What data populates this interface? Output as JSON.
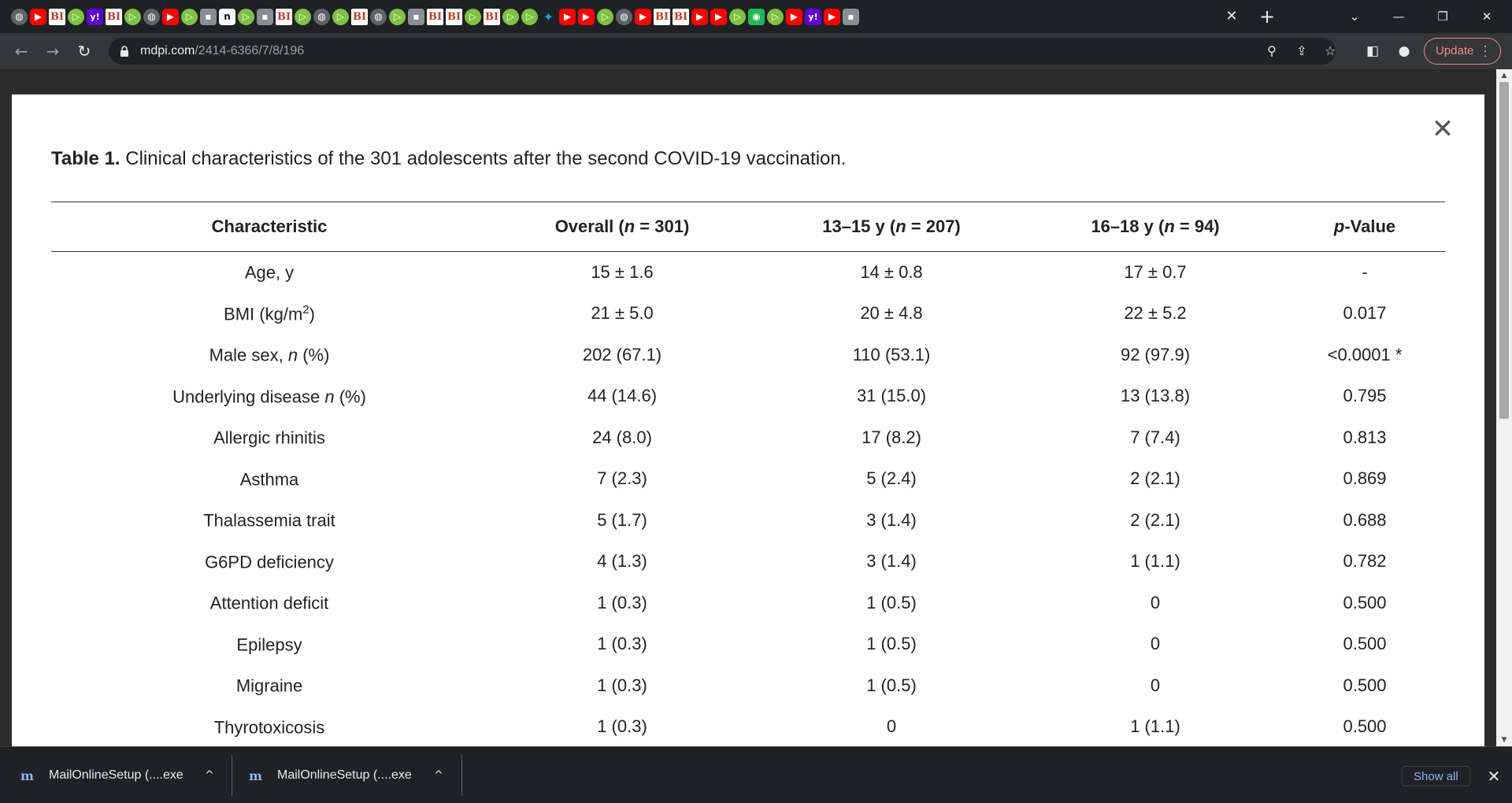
{
  "browser": {
    "tab_icons": [
      "globe-icon",
      "yt",
      "bi",
      "play",
      "y",
      "bi",
      "play",
      "globe-icon",
      "yt",
      "play",
      "gray",
      "blk",
      "play",
      "gray",
      "bi",
      "play",
      "globe-icon",
      "play",
      "bi",
      "globe-icon",
      "play",
      "gray",
      "bi",
      "bi",
      "play",
      "bi",
      "play",
      "play",
      "tw",
      "yt",
      "yt",
      "play",
      "globe-icon",
      "yt",
      "bi",
      "bi",
      "yt",
      "yt",
      "play",
      "grn",
      "play",
      "yt",
      "y",
      "yt",
      "gray"
    ],
    "tab_close": "✕",
    "new_tab": "+",
    "win_controls": {
      "dropdown": "⌄",
      "minimize": "—",
      "restore": "❐",
      "close": "✕"
    },
    "url_host": "mdpi.com",
    "url_path": "/2414-6366/7/8/196",
    "update_label": "Update",
    "update_dots": "⋮"
  },
  "modal": {
    "close_glyph": "✕",
    "caption_label": "Table 1.",
    "caption_text": " Clinical characteristics of the 301 adolescents after the second COVID-19 vaccination."
  },
  "table": {
    "headers": [
      {
        "pre": "Characteristic",
        "ital": "",
        "post": ""
      },
      {
        "pre": "Overall (",
        "ital": "n",
        "post": " = 301)"
      },
      {
        "pre": "13–15 y (",
        "ital": "n",
        "post": " = 207)"
      },
      {
        "pre": "16–18 y (",
        "ital": "n",
        "post": " = 94)"
      },
      {
        "pre": "",
        "ital": "p",
        "post": "-Value"
      }
    ],
    "rows": [
      {
        "label_pre": "Age, y",
        "label_ital": "",
        "label_post": "",
        "sup": "",
        "sup_post": "",
        "overall": "15 ± 1.6",
        "g1315": "14 ± 0.8",
        "g1618": "17 ± 0.7",
        "p": "-"
      },
      {
        "label_pre": "BMI (kg/m",
        "label_ital": "",
        "label_post": "",
        "sup": "2",
        "sup_post": ")",
        "overall": "21 ± 5.0",
        "g1315": "20 ± 4.8",
        "g1618": "22 ± 5.2",
        "p": "0.017"
      },
      {
        "label_pre": "Male sex, ",
        "label_ital": "n",
        "label_post": " (%)",
        "sup": "",
        "sup_post": "",
        "overall": "202 (67.1)",
        "g1315": "110 (53.1)",
        "g1618": "92 (97.9)",
        "p": "<0.0001 *"
      },
      {
        "label_pre": "Underlying disease ",
        "label_ital": "n",
        "label_post": " (%)",
        "sup": "",
        "sup_post": "",
        "overall": "44 (14.6)",
        "g1315": "31 (15.0)",
        "g1618": "13 (13.8)",
        "p": "0.795"
      },
      {
        "label_pre": "Allergic rhinitis",
        "label_ital": "",
        "label_post": "",
        "sup": "",
        "sup_post": "",
        "overall": "24 (8.0)",
        "g1315": "17 (8.2)",
        "g1618": "7 (7.4)",
        "p": "0.813"
      },
      {
        "label_pre": "Asthma",
        "label_ital": "",
        "label_post": "",
        "sup": "",
        "sup_post": "",
        "overall": "7 (2.3)",
        "g1315": "5 (2.4)",
        "g1618": "2 (2.1)",
        "p": "0.869"
      },
      {
        "label_pre": "Thalassemia trait",
        "label_ital": "",
        "label_post": "",
        "sup": "",
        "sup_post": "",
        "overall": "5 (1.7)",
        "g1315": "3 (1.4)",
        "g1618": "2 (2.1)",
        "p": "0.688"
      },
      {
        "label_pre": "G6PD deficiency",
        "label_ital": "",
        "label_post": "",
        "sup": "",
        "sup_post": "",
        "overall": "4 (1.3)",
        "g1315": "3 (1.4)",
        "g1618": "1 (1.1)",
        "p": "0.782"
      },
      {
        "label_pre": "Attention deficit",
        "label_ital": "",
        "label_post": "",
        "sup": "",
        "sup_post": "",
        "overall": "1 (0.3)",
        "g1315": "1 (0.5)",
        "g1618": "0",
        "p": "0.500"
      },
      {
        "label_pre": "Epilepsy",
        "label_ital": "",
        "label_post": "",
        "sup": "",
        "sup_post": "",
        "overall": "1 (0.3)",
        "g1315": "1 (0.5)",
        "g1618": "0",
        "p": "0.500"
      },
      {
        "label_pre": "Migraine",
        "label_ital": "",
        "label_post": "",
        "sup": "",
        "sup_post": "",
        "overall": "1 (0.3)",
        "g1315": "1 (0.5)",
        "g1618": "0",
        "p": "0.500"
      },
      {
        "label_pre": "Thyrotoxicosis",
        "label_ital": "",
        "label_post": "",
        "sup": "",
        "sup_post": "",
        "overall": "1 (0.3)",
        "g1315": "0",
        "g1618": "1 (1.1)",
        "p": "0.500"
      }
    ]
  },
  "downloads": {
    "items": [
      {
        "icon": "m",
        "name": "MailOnlineSetup (....exe",
        "chevron": "^"
      },
      {
        "icon": "m",
        "name": "MailOnlineSetup (....exe",
        "chevron": "^"
      }
    ],
    "show_all": "Show all",
    "close": "✕"
  },
  "colors": {
    "accent_update": "#f28b82",
    "link_blue": "#8ab4f8"
  }
}
